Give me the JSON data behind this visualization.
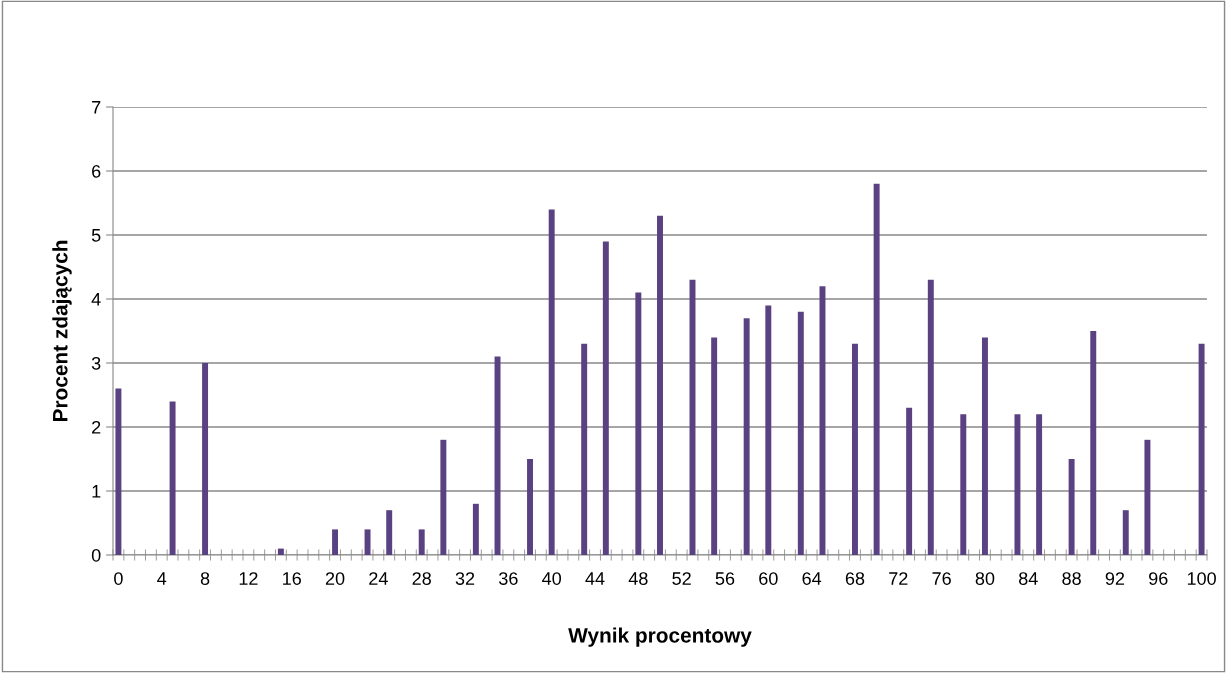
{
  "chart_data": {
    "type": "bar",
    "xlabel": "Wynik procentowy",
    "ylabel": "Procent zdających",
    "categories": [
      "0",
      null,
      null,
      null,
      "4",
      null,
      null,
      null,
      "8",
      null,
      null,
      null,
      "12",
      null,
      null,
      null,
      "16",
      null,
      null,
      null,
      "20",
      null,
      null,
      null,
      "24",
      null,
      null,
      null,
      "28",
      null,
      null,
      null,
      "32",
      null,
      null,
      null,
      "36",
      null,
      null,
      null,
      "40",
      null,
      null,
      null,
      "44",
      null,
      null,
      null,
      "48",
      null,
      null,
      null,
      "52",
      null,
      null,
      null,
      "56",
      null,
      null,
      null,
      "60",
      null,
      null,
      null,
      "64",
      null,
      null,
      null,
      "68",
      null,
      null,
      null,
      "72",
      null,
      null,
      null,
      "76",
      null,
      null,
      null,
      "80",
      null,
      null,
      null,
      "84",
      null,
      null,
      null,
      "88",
      null,
      null,
      null,
      "92",
      null,
      null,
      null,
      "96",
      null,
      null,
      null,
      "100"
    ],
    "values": [
      2.6,
      0,
      0,
      0,
      0,
      2.4,
      0,
      0,
      3.0,
      0,
      0,
      0,
      0,
      0,
      0,
      0.1,
      0,
      0,
      0,
      0,
      0.4,
      0,
      0,
      0.4,
      0,
      0.7,
      0,
      0,
      0.4,
      0,
      1.8,
      0,
      0,
      0.8,
      0,
      3.1,
      0,
      0,
      1.5,
      0,
      5.4,
      0,
      0,
      3.3,
      0,
      4.9,
      0,
      0,
      4.1,
      0,
      5.3,
      0,
      0,
      4.3,
      0,
      3.4,
      0,
      0,
      3.7,
      0,
      3.9,
      0,
      0,
      3.8,
      0,
      4.2,
      0,
      0,
      3.3,
      0,
      5.8,
      0,
      0,
      2.3,
      0,
      4.3,
      0,
      0,
      2.2,
      0,
      3.4,
      0,
      0,
      2.2,
      0,
      2.2,
      0,
      0,
      1.5,
      0,
      3.5,
      0,
      0,
      0.7,
      0,
      1.8,
      0,
      0,
      0,
      0,
      3.3
    ],
    "color": "#5a4282",
    "ylim": [
      0,
      7
    ],
    "yticks": [
      0,
      1,
      2,
      3,
      4,
      5,
      6,
      7
    ],
    "grid": "y",
    "legend": false
  }
}
